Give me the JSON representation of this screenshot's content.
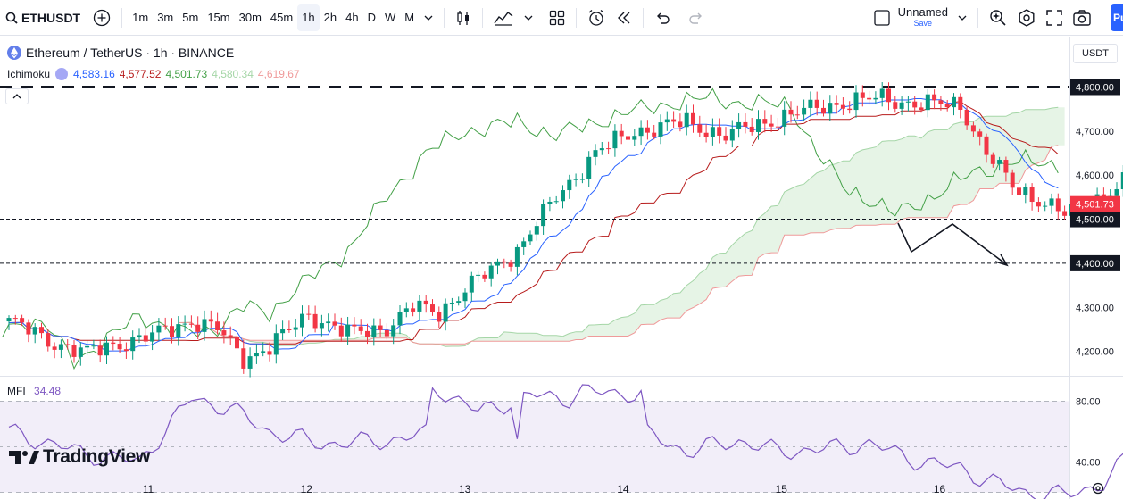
{
  "toolbar": {
    "symbol": "ETHUSDT",
    "intervals": [
      "1m",
      "3m",
      "5m",
      "15m",
      "30m",
      "45m",
      "1h",
      "2h",
      "4h",
      "D",
      "W",
      "M"
    ],
    "active_interval": "1h",
    "layout_name": "Unnamed",
    "save_label": "Save",
    "publish_label": "Pu"
  },
  "legend": {
    "title": "Ethereum / TetherUS · 1h · BINANCE",
    "indicator": "Ichimoku",
    "values": [
      {
        "text": "4,583.16",
        "color": "#2962ff"
      },
      {
        "text": "4,577.52",
        "color": "#b71c1c"
      },
      {
        "text": "4,501.73",
        "color": "#43a047"
      },
      {
        "text": "4,580.34",
        "color": "#a5d6a7"
      },
      {
        "text": "4,619.67",
        "color": "#ef9a9a"
      }
    ]
  },
  "currency": "USDT",
  "mfi": {
    "label": "MFI",
    "value": "34.48"
  },
  "brand": "TradingView",
  "chart_data": {
    "type": "candlestick",
    "price_axis": {
      "ticks": [
        {
          "label": "4,800.00",
          "value": 4800,
          "boxed": true
        },
        {
          "label": "4,700.00",
          "value": 4700
        },
        {
          "label": "4,600.00",
          "value": 4600
        },
        {
          "label": "4,500.00",
          "value": 4500,
          "boxed": true
        },
        {
          "label": "4,400.00",
          "value": 4400,
          "boxed": true
        },
        {
          "label": "4,300.00",
          "value": 4300
        },
        {
          "label": "4,200.00",
          "value": 4200
        }
      ]
    },
    "last_price": {
      "label": "4,501.73",
      "value": 4501.73,
      "color": "#f23645"
    },
    "horizontal_lines": [
      {
        "value": 4800,
        "style": "thick-dashed"
      },
      {
        "value": 4500,
        "style": "dashed"
      },
      {
        "value": 4400,
        "style": "dashed"
      }
    ],
    "time_axis": [
      "11",
      "12",
      "13",
      "14",
      "15",
      "16"
    ],
    "mfi_axis": [
      {
        "label": "80.00",
        "value": 80
      },
      {
        "label": "40.00",
        "value": 40
      }
    ],
    "mfi_band": [
      20,
      80
    ],
    "colors": {
      "up": "#089981",
      "down": "#f23645",
      "tenkan": "#2962ff",
      "kijun": "#b71c1c",
      "chikou": "#43a047",
      "cloud_bull": "#a5d6a7",
      "cloud_bear": "#ef9a9a",
      "mfi": "#7e57c2"
    }
  }
}
